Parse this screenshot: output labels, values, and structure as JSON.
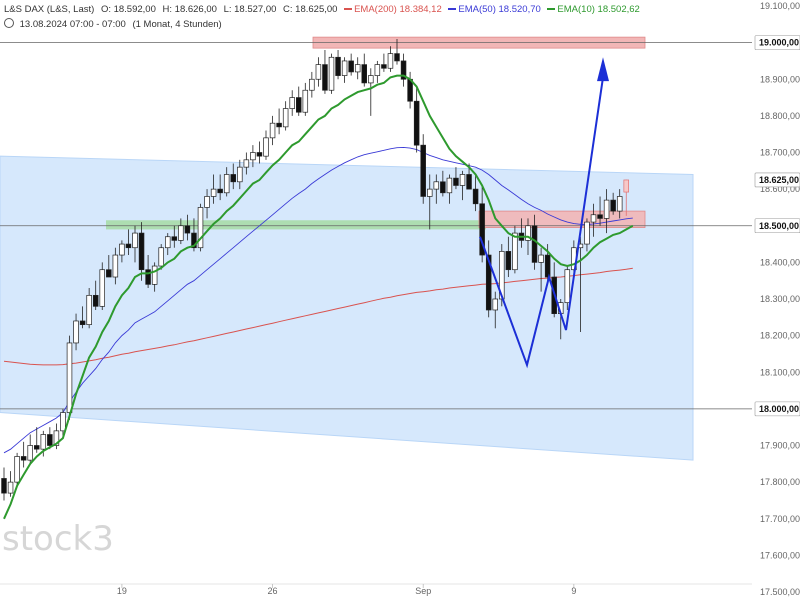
{
  "header": {
    "line1": {
      "instrument": "L&S DAX (L&S, Last)",
      "open": "O: 18.592,00",
      "high": "H: 18.626,00",
      "low": "L: 18.527,00",
      "close": "C: 18.625,00",
      "ema200_label": "EMA(200)",
      "ema200_value": "18.384,12",
      "ema50_label": "EMA(50)",
      "ema50_value": "18.520,70",
      "ema10_label": "EMA(10)",
      "ema10_value": "18.502,62"
    },
    "line2": {
      "timestamp": "13.08.2024 07:00 - 07:00",
      "period": "(1 Monat, 4 Stunden)"
    }
  },
  "watermark": "stock3",
  "colors": {
    "ema200": "#d9534f",
    "ema50": "#3a3ad6",
    "ema10": "#2e9a2e",
    "channel": "#cfe4fb",
    "resistance_zone": "#f2b6b6",
    "support_zone": "#a9dba9",
    "arrow": "#1c2fd6",
    "bull": "#ffffff",
    "bear": "#111111"
  },
  "chart_data": {
    "type": "candlestick",
    "title": "",
    "xlabel": "",
    "ylabel": "",
    "ylim": [
      17500,
      19100
    ],
    "y_ticks": [
      "19.100,00",
      "19.000,00",
      "18.900,00",
      "18.800,00",
      "18.700,00",
      "18.600,00",
      "18.500,00",
      "18.400,00",
      "18.300,00",
      "18.200,00",
      "18.100,00",
      "18.000,00",
      "17.900,00",
      "17.800,00",
      "17.700,00",
      "17.600,00",
      "17.500,00"
    ],
    "y_tick_values": [
      19100,
      19000,
      18900,
      18800,
      18700,
      18600,
      18500,
      18400,
      18300,
      18200,
      18100,
      18000,
      17900,
      17800,
      17700,
      17600,
      17500
    ],
    "x_labels": [
      {
        "label": "19",
        "index": 18
      },
      {
        "label": "26",
        "index": 41
      },
      {
        "label": "Sep",
        "index": 64
      },
      {
        "label": "9",
        "index": 87
      }
    ],
    "horizontal_levels": [
      {
        "value": 19000,
        "label": "19.000,00"
      },
      {
        "value": 18500,
        "label": "18.500,00"
      },
      {
        "value": 18000,
        "label": "18.000,00"
      }
    ],
    "last_price": {
      "value": 18625,
      "label": "18.625,00"
    },
    "candles": [
      {
        "o": 17810,
        "h": 17840,
        "l": 17750,
        "c": 17770
      },
      {
        "o": 17770,
        "h": 17830,
        "l": 17760,
        "c": 17800
      },
      {
        "o": 17800,
        "h": 17880,
        "l": 17790,
        "c": 17870
      },
      {
        "o": 17870,
        "h": 17910,
        "l": 17840,
        "c": 17860
      },
      {
        "o": 17860,
        "h": 17930,
        "l": 17850,
        "c": 17900
      },
      {
        "o": 17900,
        "h": 17950,
        "l": 17880,
        "c": 17890
      },
      {
        "o": 17890,
        "h": 17940,
        "l": 17870,
        "c": 17930
      },
      {
        "o": 17930,
        "h": 17950,
        "l": 17890,
        "c": 17900
      },
      {
        "o": 17900,
        "h": 17960,
        "l": 17890,
        "c": 17940
      },
      {
        "o": 17940,
        "h": 18000,
        "l": 17920,
        "c": 17990
      },
      {
        "o": 17990,
        "h": 18200,
        "l": 17970,
        "c": 18180
      },
      {
        "o": 18180,
        "h": 18260,
        "l": 18160,
        "c": 18240
      },
      {
        "o": 18240,
        "h": 18280,
        "l": 18220,
        "c": 18230
      },
      {
        "o": 18230,
        "h": 18330,
        "l": 18220,
        "c": 18310
      },
      {
        "o": 18310,
        "h": 18350,
        "l": 18270,
        "c": 18280
      },
      {
        "o": 18280,
        "h": 18400,
        "l": 18270,
        "c": 18380
      },
      {
        "o": 18380,
        "h": 18420,
        "l": 18360,
        "c": 18360
      },
      {
        "o": 18360,
        "h": 18440,
        "l": 18340,
        "c": 18420
      },
      {
        "o": 18420,
        "h": 18460,
        "l": 18400,
        "c": 18450
      },
      {
        "o": 18450,
        "h": 18490,
        "l": 18420,
        "c": 18440
      },
      {
        "o": 18440,
        "h": 18500,
        "l": 18400,
        "c": 18480
      },
      {
        "o": 18480,
        "h": 18510,
        "l": 18350,
        "c": 18380
      },
      {
        "o": 18380,
        "h": 18420,
        "l": 18330,
        "c": 18340
      },
      {
        "o": 18340,
        "h": 18400,
        "l": 18320,
        "c": 18390
      },
      {
        "o": 18390,
        "h": 18450,
        "l": 18380,
        "c": 18440
      },
      {
        "o": 18440,
        "h": 18480,
        "l": 18420,
        "c": 18470
      },
      {
        "o": 18470,
        "h": 18500,
        "l": 18440,
        "c": 18460
      },
      {
        "o": 18460,
        "h": 18520,
        "l": 18450,
        "c": 18500
      },
      {
        "o": 18500,
        "h": 18530,
        "l": 18460,
        "c": 18480
      },
      {
        "o": 18480,
        "h": 18520,
        "l": 18430,
        "c": 18440
      },
      {
        "o": 18440,
        "h": 18560,
        "l": 18430,
        "c": 18550
      },
      {
        "o": 18550,
        "h": 18600,
        "l": 18520,
        "c": 18580
      },
      {
        "o": 18580,
        "h": 18640,
        "l": 18560,
        "c": 18600
      },
      {
        "o": 18600,
        "h": 18640,
        "l": 18570,
        "c": 18590
      },
      {
        "o": 18590,
        "h": 18660,
        "l": 18580,
        "c": 18640
      },
      {
        "o": 18640,
        "h": 18670,
        "l": 18600,
        "c": 18620
      },
      {
        "o": 18620,
        "h": 18680,
        "l": 18600,
        "c": 18660
      },
      {
        "o": 18660,
        "h": 18700,
        "l": 18640,
        "c": 18680
      },
      {
        "o": 18680,
        "h": 18720,
        "l": 18660,
        "c": 18700
      },
      {
        "o": 18700,
        "h": 18730,
        "l": 18670,
        "c": 18690
      },
      {
        "o": 18690,
        "h": 18760,
        "l": 18680,
        "c": 18740
      },
      {
        "o": 18740,
        "h": 18800,
        "l": 18720,
        "c": 18780
      },
      {
        "o": 18780,
        "h": 18820,
        "l": 18750,
        "c": 18770
      },
      {
        "o": 18770,
        "h": 18840,
        "l": 18760,
        "c": 18820
      },
      {
        "o": 18820,
        "h": 18870,
        "l": 18800,
        "c": 18850
      },
      {
        "o": 18850,
        "h": 18880,
        "l": 18800,
        "c": 18810
      },
      {
        "o": 18810,
        "h": 18890,
        "l": 18800,
        "c": 18870
      },
      {
        "o": 18870,
        "h": 18920,
        "l": 18850,
        "c": 18900
      },
      {
        "o": 18900,
        "h": 18960,
        "l": 18880,
        "c": 18940
      },
      {
        "o": 18940,
        "h": 18980,
        "l": 18860,
        "c": 18870
      },
      {
        "o": 18870,
        "h": 18970,
        "l": 18860,
        "c": 18960
      },
      {
        "o": 18960,
        "h": 18980,
        "l": 18900,
        "c": 18910
      },
      {
        "o": 18910,
        "h": 18960,
        "l": 18890,
        "c": 18950
      },
      {
        "o": 18950,
        "h": 18970,
        "l": 18910,
        "c": 18920
      },
      {
        "o": 18920,
        "h": 18960,
        "l": 18900,
        "c": 18940
      },
      {
        "o": 18940,
        "h": 18970,
        "l": 18880,
        "c": 18890
      },
      {
        "o": 18890,
        "h": 18930,
        "l": 18800,
        "c": 18910
      },
      {
        "o": 18910,
        "h": 18950,
        "l": 18890,
        "c": 18940
      },
      {
        "o": 18940,
        "h": 18970,
        "l": 18920,
        "c": 18930
      },
      {
        "o": 18930,
        "h": 18990,
        "l": 18920,
        "c": 18970
      },
      {
        "o": 18970,
        "h": 19010,
        "l": 18940,
        "c": 18950
      },
      {
        "o": 18950,
        "h": 18970,
        "l": 18880,
        "c": 18900
      },
      {
        "o": 18900,
        "h": 18920,
        "l": 18820,
        "c": 18840
      },
      {
        "o": 18840,
        "h": 18880,
        "l": 18700,
        "c": 18720
      },
      {
        "o": 18720,
        "h": 18750,
        "l": 18560,
        "c": 18580
      },
      {
        "o": 18580,
        "h": 18640,
        "l": 18490,
        "c": 18600
      },
      {
        "o": 18600,
        "h": 18640,
        "l": 18560,
        "c": 18620
      },
      {
        "o": 18620,
        "h": 18650,
        "l": 18580,
        "c": 18590
      },
      {
        "o": 18590,
        "h": 18640,
        "l": 18560,
        "c": 18630
      },
      {
        "o": 18630,
        "h": 18660,
        "l": 18600,
        "c": 18610
      },
      {
        "o": 18610,
        "h": 18650,
        "l": 18570,
        "c": 18640
      },
      {
        "o": 18640,
        "h": 18670,
        "l": 18600,
        "c": 18600
      },
      {
        "o": 18600,
        "h": 18640,
        "l": 18540,
        "c": 18560
      },
      {
        "o": 18560,
        "h": 18610,
        "l": 18400,
        "c": 18420
      },
      {
        "o": 18420,
        "h": 18460,
        "l": 18250,
        "c": 18270
      },
      {
        "o": 18270,
        "h": 18320,
        "l": 18220,
        "c": 18300
      },
      {
        "o": 18300,
        "h": 18450,
        "l": 18280,
        "c": 18430
      },
      {
        "o": 18430,
        "h": 18470,
        "l": 18360,
        "c": 18380
      },
      {
        "o": 18380,
        "h": 18500,
        "l": 18370,
        "c": 18480
      },
      {
        "o": 18480,
        "h": 18520,
        "l": 18440,
        "c": 18460
      },
      {
        "o": 18460,
        "h": 18520,
        "l": 18420,
        "c": 18500
      },
      {
        "o": 18500,
        "h": 18530,
        "l": 18380,
        "c": 18400
      },
      {
        "o": 18400,
        "h": 18440,
        "l": 18320,
        "c": 18420
      },
      {
        "o": 18420,
        "h": 18450,
        "l": 18340,
        "c": 18360
      },
      {
        "o": 18360,
        "h": 18400,
        "l": 18250,
        "c": 18260
      },
      {
        "o": 18260,
        "h": 18300,
        "l": 18190,
        "c": 18290
      },
      {
        "o": 18290,
        "h": 18390,
        "l": 18270,
        "c": 18380
      },
      {
        "o": 18380,
        "h": 18460,
        "l": 18360,
        "c": 18440
      },
      {
        "o": 18440,
        "h": 18470,
        "l": 18210,
        "c": 18450
      },
      {
        "o": 18450,
        "h": 18520,
        "l": 18430,
        "c": 18510
      },
      {
        "o": 18510,
        "h": 18560,
        "l": 18470,
        "c": 18530
      },
      {
        "o": 18530,
        "h": 18580,
        "l": 18500,
        "c": 18520
      },
      {
        "o": 18520,
        "h": 18600,
        "l": 18480,
        "c": 18570
      },
      {
        "o": 18570,
        "h": 18590,
        "l": 18530,
        "c": 18540
      },
      {
        "o": 18540,
        "h": 18600,
        "l": 18520,
        "c": 18580
      },
      {
        "o": 18592,
        "h": 18626,
        "l": 18527,
        "c": 18625
      }
    ],
    "ema10": [
      17700,
      17740,
      17790,
      17820,
      17850,
      17870,
      17885,
      17895,
      17905,
      17920,
      17980,
      18040,
      18090,
      18140,
      18170,
      18210,
      18240,
      18280,
      18310,
      18330,
      18360,
      18370,
      18370,
      18375,
      18385,
      18400,
      18410,
      18430,
      18440,
      18445,
      18465,
      18485,
      18505,
      18520,
      18540,
      18555,
      18575,
      18595,
      18615,
      18625,
      18645,
      18665,
      18680,
      18700,
      18720,
      18730,
      18750,
      18770,
      18790,
      18800,
      18820,
      18830,
      18845,
      18855,
      18865,
      18870,
      18875,
      18885,
      18890,
      18905,
      18910,
      18910,
      18900,
      18880,
      18840,
      18800,
      18770,
      18740,
      18710,
      18690,
      18675,
      18660,
      18640,
      18610,
      18570,
      18520,
      18500,
      18480,
      18470,
      18470,
      18470,
      18460,
      18445,
      18430,
      18410,
      18395,
      18390,
      18395,
      18405,
      18420,
      18440,
      18455,
      18465,
      18475,
      18480,
      18490,
      18500
    ],
    "ema50": [
      17880,
      17890,
      17905,
      17920,
      17935,
      17945,
      17955,
      17965,
      17975,
      17990,
      18020,
      18045,
      18070,
      18090,
      18110,
      18135,
      18155,
      18180,
      18200,
      18215,
      18235,
      18245,
      18255,
      18265,
      18280,
      18295,
      18310,
      18325,
      18340,
      18350,
      18365,
      18380,
      18395,
      18410,
      18425,
      18440,
      18455,
      18470,
      18485,
      18500,
      18515,
      18530,
      18545,
      18560,
      18575,
      18588,
      18600,
      18615,
      18628,
      18640,
      18652,
      18662,
      18672,
      18680,
      18688,
      18694,
      18698,
      18702,
      18706,
      18710,
      18713,
      18714,
      18712,
      18708,
      18700,
      18692,
      18686,
      18680,
      18676,
      18672,
      18668,
      18664,
      18660,
      18652,
      18640,
      18625,
      18610,
      18598,
      18585,
      18572,
      18560,
      18550,
      18542,
      18532,
      18524,
      18516,
      18510,
      18506,
      18504,
      18503,
      18505,
      18507,
      18510,
      18513,
      18516,
      18519,
      18521
    ],
    "ema200": [
      18130,
      18128,
      18126,
      18124,
      18122,
      18121,
      18120,
      18120,
      18120,
      18121,
      18123,
      18125,
      18128,
      18131,
      18134,
      18138,
      18141,
      18145,
      18149,
      18152,
      18156,
      18159,
      18162,
      18165,
      18168,
      18172,
      18175,
      18179,
      18183,
      18186,
      18190,
      18194,
      18198,
      18202,
      18206,
      18210,
      18214,
      18218,
      18222,
      18226,
      18230,
      18234,
      18238,
      18242,
      18246,
      18250,
      18254,
      18258,
      18262,
      18266,
      18270,
      18274,
      18278,
      18282,
      18286,
      18290,
      18294,
      18298,
      18302,
      18305,
      18309,
      18312,
      18315,
      18318,
      18320,
      18322,
      18325,
      18327,
      18330,
      18332,
      18334,
      18336,
      18338,
      18340,
      18341,
      18342,
      18344,
      18346,
      18348,
      18350,
      18352,
      18354,
      18356,
      18357,
      18359,
      18360,
      18362,
      18364,
      18366,
      18368,
      18370,
      18372,
      18375,
      18377,
      18379,
      18381,
      18384
    ]
  }
}
